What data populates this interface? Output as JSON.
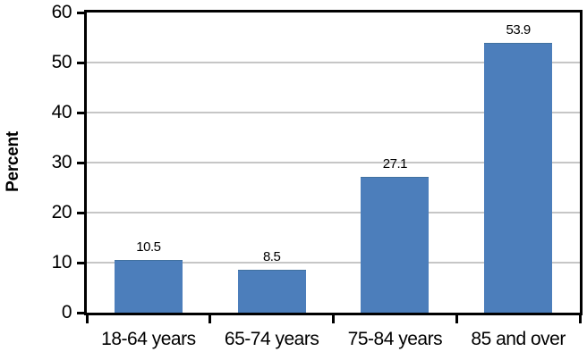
{
  "chart_data": {
    "type": "bar",
    "categories": [
      "18-64 years",
      "65-74 years",
      "75-84 years",
      "85 and over"
    ],
    "values": [
      10.5,
      8.5,
      27.1,
      53.9
    ],
    "data_labels": [
      "10.5",
      "8.5",
      "27.1",
      "53.9"
    ],
    "title": "",
    "xlabel": "",
    "ylabel": "Percent",
    "ylim": [
      0,
      60
    ],
    "ytick_step": 10,
    "ytick_labels": [
      "0",
      "10",
      "20",
      "30",
      "40",
      "50",
      "60"
    ],
    "grid": true,
    "legend": "none",
    "bar_color": "#4c7ebb",
    "bar_border_color": "#41719f",
    "gridline_color": "#c6c6c6",
    "axis_color": "#000000",
    "label_color": "#000000",
    "background_color": "#ffffff"
  }
}
